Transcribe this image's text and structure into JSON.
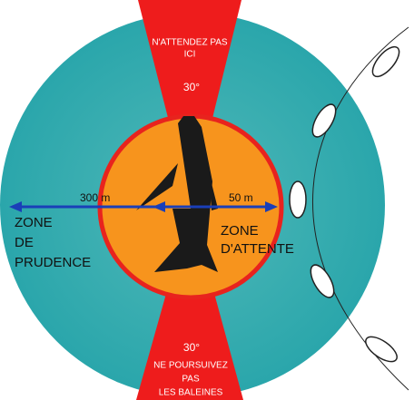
{
  "diagram": {
    "top_zone": {
      "text_lines": [
        "N'ATTENDEZ PAS",
        "ICI"
      ],
      "angle": "30°"
    },
    "bottom_zone": {
      "angle": "30°",
      "text_lines": [
        "NE POURSUIVEZ",
        "PAS",
        "LES BALEINES"
      ]
    },
    "outer_zone": {
      "label_lines": [
        "ZONE",
        "DE",
        "PRUDENCE"
      ],
      "distance": "300 m"
    },
    "inner_zone": {
      "label_lines": [
        "ZONE",
        "D'ATTENTE"
      ],
      "distance": "50 m"
    }
  }
}
